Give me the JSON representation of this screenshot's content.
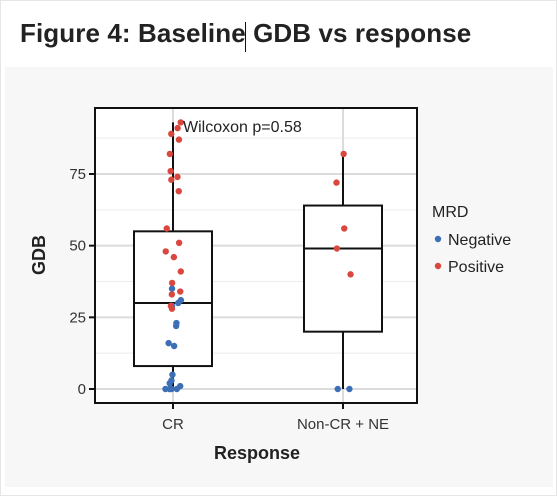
{
  "page": {
    "title": "Figure 4: Baseline GDB vs response"
  },
  "chart_data": {
    "type": "boxplot",
    "xlabel": "Response",
    "ylabel": "GDB",
    "categories": [
      "CR",
      "Non-CR + NE"
    ],
    "ylim": [
      -5,
      95
    ],
    "yticks": [
      0,
      25,
      50,
      75
    ],
    "grid": true,
    "annotation": "Wilcoxon p=0.58",
    "legend": {
      "title": "MRD",
      "placement": "right",
      "entries": [
        {
          "label": "Negative",
          "color": "#3d6fb6"
        },
        {
          "label": "Positive",
          "color": "#d9473f"
        }
      ]
    },
    "boxes": [
      {
        "category": "CR",
        "q1": 8,
        "median": 30,
        "q3": 55,
        "whisker_low": 0,
        "whisker_high": 93
      },
      {
        "category": "Non-CR + NE",
        "q1": 20,
        "median": 49,
        "q3": 64,
        "whisker_low": 0,
        "whisker_high": 82
      }
    ],
    "series": [
      {
        "name": "Negative",
        "color": "#3d6fb6",
        "points": [
          {
            "x": "CR",
            "y": 35
          },
          {
            "x": "CR",
            "y": 31
          },
          {
            "x": "CR",
            "y": 30
          },
          {
            "x": "CR",
            "y": 29
          },
          {
            "x": "CR",
            "y": 23
          },
          {
            "x": "CR",
            "y": 22
          },
          {
            "x": "CR",
            "y": 16
          },
          {
            "x": "CR",
            "y": 15
          },
          {
            "x": "CR",
            "y": 5
          },
          {
            "x": "CR",
            "y": 3
          },
          {
            "x": "CR",
            "y": 2
          },
          {
            "x": "CR",
            "y": 1
          },
          {
            "x": "CR",
            "y": 0
          },
          {
            "x": "CR",
            "y": 0
          },
          {
            "x": "CR",
            "y": 0
          },
          {
            "x": "CR",
            "y": 0
          },
          {
            "x": "CR",
            "y": 0
          },
          {
            "x": "Non-CR + NE",
            "y": 0
          },
          {
            "x": "Non-CR + NE",
            "y": 0
          }
        ]
      },
      {
        "name": "Positive",
        "color": "#d9473f",
        "points": [
          {
            "x": "CR",
            "y": 93
          },
          {
            "x": "CR",
            "y": 91
          },
          {
            "x": "CR",
            "y": 89
          },
          {
            "x": "CR",
            "y": 87
          },
          {
            "x": "CR",
            "y": 82
          },
          {
            "x": "CR",
            "y": 76
          },
          {
            "x": "CR",
            "y": 74
          },
          {
            "x": "CR",
            "y": 73
          },
          {
            "x": "CR",
            "y": 69
          },
          {
            "x": "CR",
            "y": 56
          },
          {
            "x": "CR",
            "y": 51
          },
          {
            "x": "CR",
            "y": 48
          },
          {
            "x": "CR",
            "y": 46
          },
          {
            "x": "CR",
            "y": 41
          },
          {
            "x": "CR",
            "y": 37
          },
          {
            "x": "CR",
            "y": 34
          },
          {
            "x": "CR",
            "y": 33
          },
          {
            "x": "CR",
            "y": 29
          },
          {
            "x": "CR",
            "y": 28
          },
          {
            "x": "Non-CR + NE",
            "y": 82
          },
          {
            "x": "Non-CR + NE",
            "y": 72
          },
          {
            "x": "Non-CR + NE",
            "y": 56
          },
          {
            "x": "Non-CR + NE",
            "y": 49
          },
          {
            "x": "Non-CR + NE",
            "y": 40
          }
        ]
      }
    ]
  }
}
